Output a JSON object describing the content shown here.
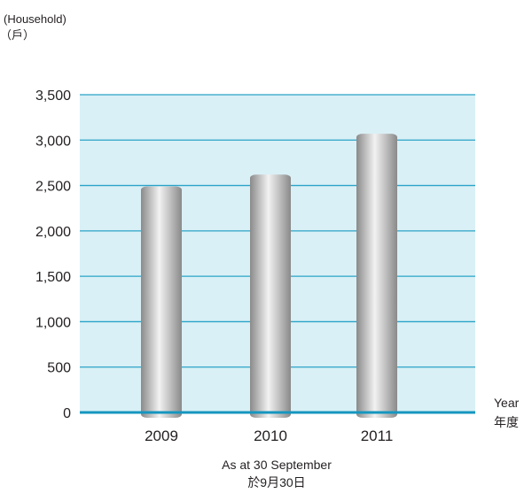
{
  "chart_data": {
    "type": "bar",
    "categories": [
      "2009",
      "2010",
      "2011"
    ],
    "values": [
      2490,
      2620,
      3070
    ],
    "ylim": [
      0,
      3500
    ],
    "yticks": [
      0,
      500,
      1000,
      1500,
      2000,
      2500,
      3000,
      3500
    ],
    "ytick_labels": [
      "0",
      "500",
      "1,000",
      "1,500",
      "2,000",
      "2,500",
      "3,000",
      "3,500"
    ],
    "ylabel": "(Household)",
    "ylabel_zh": "（戶）",
    "xlabel": "Year",
    "xlabel_zh": "年度",
    "note": "As at 30 September",
    "note_zh": "於9月30日",
    "grid": true,
    "colors": {
      "plot_background": "#d9f0f6",
      "gridline": "#2aa3c7",
      "baseline": "#1596bf",
      "bar_dark": "#8a8a8a",
      "bar_light": "#f2f2f2"
    }
  }
}
